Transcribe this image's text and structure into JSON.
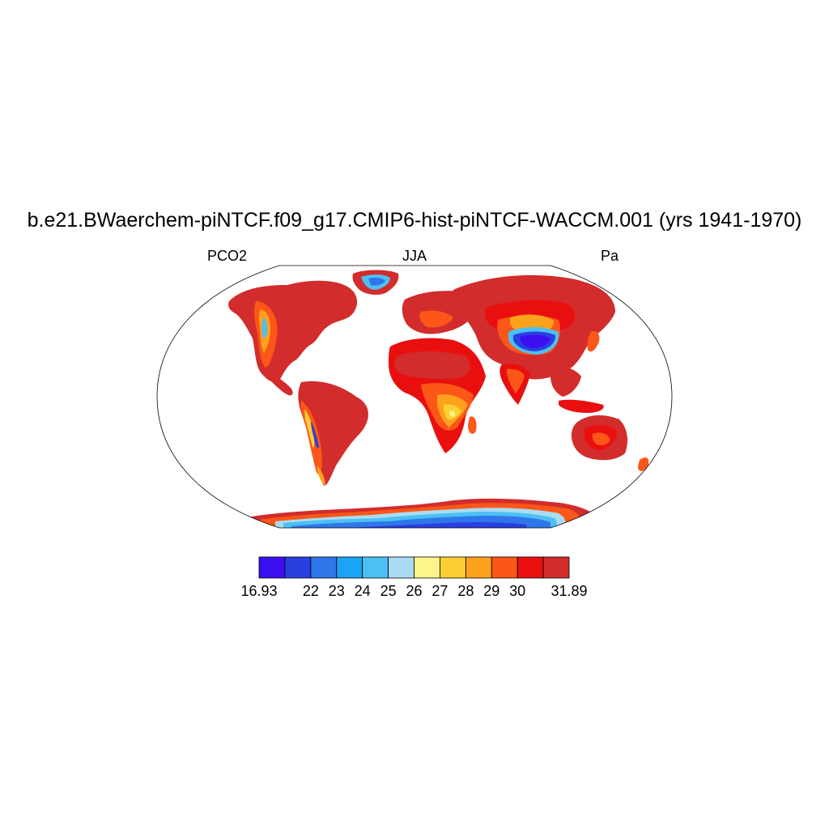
{
  "title": "b.e21.BWaerchem-piNTCF.f09_g17.CMIP6-hist-piNTCF-WACCM.001 (yrs 1941-1970)",
  "left_label": "PCO2",
  "center_label": "JJA",
  "right_label": "Pa",
  "colorbar": {
    "colors": [
      "#3b0ff0",
      "#2a3fe0",
      "#2f76ea",
      "#1aa4f4",
      "#4cc0f2",
      "#a9dcf2",
      "#fdf58b",
      "#fccf32",
      "#fca21c",
      "#fc5618",
      "#ea0f0f",
      "#d22c2c"
    ],
    "labels": [
      "16.93",
      "22",
      "23",
      "24",
      "25",
      "26",
      "27",
      "28",
      "29",
      "30",
      "31.89"
    ]
  },
  "palette": {
    "ocean": "#ffffff",
    "land_hot": "#d22c2c",
    "land_red": "#ea0f0f",
    "land_orange": "#fc5618",
    "land_amber": "#fca21c",
    "land_yellow": "#fccf32",
    "land_pale": "#fdf58b",
    "land_cyan": "#4cc0f2",
    "land_blue": "#2a3fe0",
    "land_violet": "#3b0ff0"
  }
}
